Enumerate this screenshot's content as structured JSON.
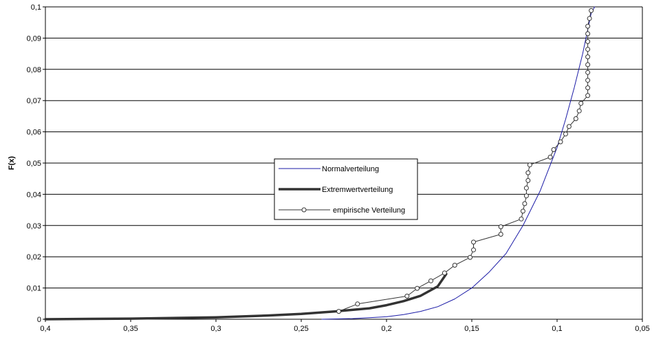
{
  "chart_data": {
    "type": "line",
    "title": "",
    "xlabel": "",
    "ylabel": "F(x)",
    "x_reversed": true,
    "xlim": [
      0.05,
      0.4
    ],
    "ylim": [
      0,
      0.1
    ],
    "grid": "horizontal",
    "legend_position": "center",
    "x_ticks": [
      "0,4",
      "0,35",
      "0,3",
      "0,25",
      "0,2",
      "0,15",
      "0,1",
      "0,05"
    ],
    "y_ticks": [
      "0",
      "0,01",
      "0,02",
      "0,03",
      "0,04",
      "0,05",
      "0,06",
      "0,07",
      "0,08",
      "0,09",
      "0,1"
    ],
    "x_tick_values": [
      0.4,
      0.35,
      0.3,
      0.25,
      0.2,
      0.15,
      0.1,
      0.05
    ],
    "y_tick_values": [
      0,
      0.01,
      0.02,
      0.03,
      0.04,
      0.05,
      0.06,
      0.07,
      0.08,
      0.09,
      0.1
    ],
    "series": [
      {
        "name": "Normalverteilung",
        "color": "#1a1aa6",
        "style": "thin-line",
        "points": [
          [
            0.238,
            0.0
          ],
          [
            0.22,
            0.0002
          ],
          [
            0.2,
            0.0008
          ],
          [
            0.19,
            0.0015
          ],
          [
            0.18,
            0.0025
          ],
          [
            0.17,
            0.004
          ],
          [
            0.16,
            0.0065
          ],
          [
            0.15,
            0.01
          ],
          [
            0.14,
            0.015
          ],
          [
            0.13,
            0.021
          ],
          [
            0.12,
            0.03
          ],
          [
            0.11,
            0.041
          ],
          [
            0.1,
            0.055
          ],
          [
            0.095,
            0.064
          ],
          [
            0.09,
            0.074
          ],
          [
            0.085,
            0.085
          ],
          [
            0.08,
            0.098
          ],
          [
            0.078,
            0.1
          ]
        ]
      },
      {
        "name": "Extremwertverteilung",
        "color": "#333333",
        "style": "thick-line",
        "points": [
          [
            0.4,
            0.0
          ],
          [
            0.35,
            0.0002
          ],
          [
            0.3,
            0.0006
          ],
          [
            0.27,
            0.0012
          ],
          [
            0.25,
            0.0017
          ],
          [
            0.23,
            0.0025
          ],
          [
            0.21,
            0.0035
          ],
          [
            0.2,
            0.0045
          ],
          [
            0.19,
            0.0058
          ],
          [
            0.18,
            0.0075
          ],
          [
            0.17,
            0.0105
          ],
          [
            0.165,
            0.0145
          ]
        ]
      },
      {
        "name": "empirische Verteilung",
        "color": "#333333",
        "style": "line-with-circle-markers",
        "points": [
          [
            0.228,
            0.0025
          ],
          [
            0.217,
            0.0049
          ],
          [
            0.188,
            0.0074
          ],
          [
            0.182,
            0.0099
          ],
          [
            0.174,
            0.0123
          ],
          [
            0.166,
            0.0148
          ],
          [
            0.16,
            0.0173
          ],
          [
            0.151,
            0.0198
          ],
          [
            0.149,
            0.0222
          ],
          [
            0.149,
            0.0247
          ],
          [
            0.133,
            0.0272
          ],
          [
            0.133,
            0.0296
          ],
          [
            0.121,
            0.0321
          ],
          [
            0.12,
            0.0346
          ],
          [
            0.119,
            0.037
          ],
          [
            0.118,
            0.0395
          ],
          [
            0.118,
            0.042
          ],
          [
            0.117,
            0.0444
          ],
          [
            0.117,
            0.0469
          ],
          [
            0.116,
            0.0494
          ],
          [
            0.104,
            0.0519
          ],
          [
            0.102,
            0.0543
          ],
          [
            0.098,
            0.0568
          ],
          [
            0.095,
            0.0593
          ],
          [
            0.093,
            0.0617
          ],
          [
            0.089,
            0.0642
          ],
          [
            0.087,
            0.0667
          ],
          [
            0.086,
            0.0691
          ],
          [
            0.082,
            0.0716
          ],
          [
            0.082,
            0.0741
          ],
          [
            0.082,
            0.0765
          ],
          [
            0.082,
            0.079
          ],
          [
            0.082,
            0.0815
          ],
          [
            0.082,
            0.084
          ],
          [
            0.082,
            0.0864
          ],
          [
            0.082,
            0.0889
          ],
          [
            0.082,
            0.0914
          ],
          [
            0.082,
            0.0938
          ],
          [
            0.081,
            0.0963
          ],
          [
            0.08,
            0.0988
          ]
        ]
      }
    ]
  }
}
